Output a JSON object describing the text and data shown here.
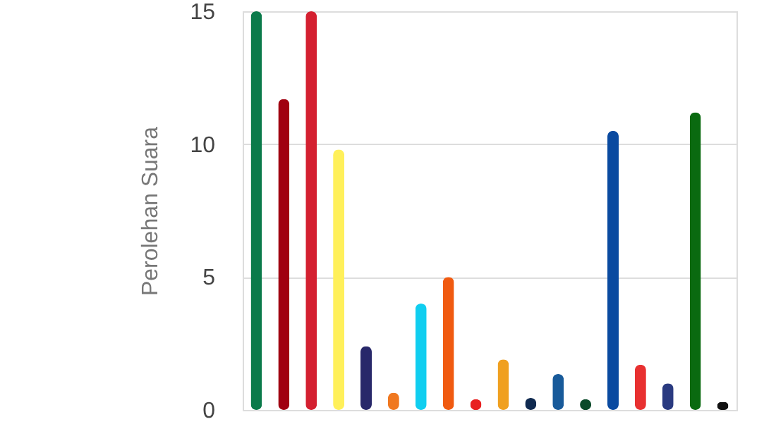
{
  "chart_data": {
    "type": "bar",
    "ylabel": "Perolehan Suara",
    "categories": [
      null,
      null,
      null,
      null,
      null,
      null,
      null,
      null,
      null,
      null,
      null,
      null,
      null,
      null,
      null,
      null,
      null,
      null
    ],
    "values": [
      15,
      11.7,
      15,
      9.8,
      2.4,
      0.65,
      4.0,
      5.0,
      0.4,
      1.9,
      0.45,
      1.35,
      0.4,
      10.5,
      1.7,
      1.0,
      11.2,
      0.3
    ],
    "colors": [
      "#0a7a4a",
      "#a00010",
      "#d42030",
      "#fff05a",
      "#28286a",
      "#f07820",
      "#10cef0",
      "#f05a10",
      "#e82020",
      "#f0a020",
      "#102a50",
      "#185a9a",
      "#0a4a2a",
      "#0a4aa0",
      "#e83030",
      "#2a3a80",
      "#0a6a10",
      "#111111"
    ],
    "ylim": [
      0,
      15
    ],
    "yticks": [
      0,
      5,
      10,
      15
    ],
    "grid": "y",
    "tick_labels": "y"
  }
}
